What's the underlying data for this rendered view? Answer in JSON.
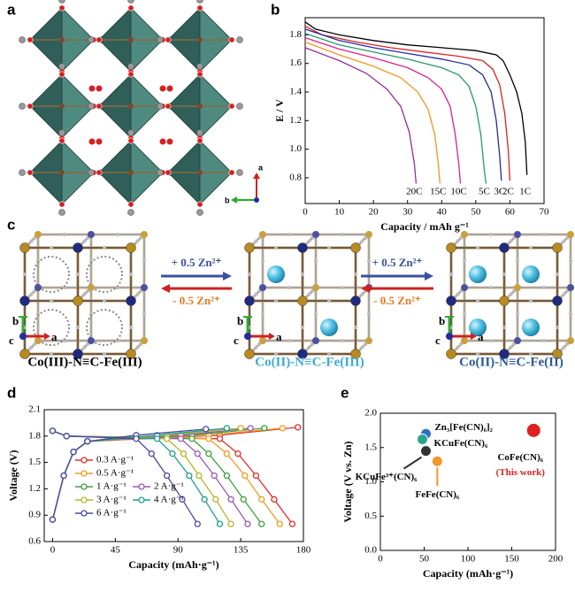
{
  "panel_labels": [
    "a",
    "b",
    "c",
    "d",
    "e"
  ],
  "panel_a": {
    "axis_labels": [
      "a",
      "b"
    ]
  },
  "panel_c": {
    "structures": [
      {
        "label": "Co(III)-N≡C-Fe(III)",
        "color": "#000000",
        "axes": [
          "b",
          "c",
          "a"
        ]
      },
      {
        "label": "Co(II)-N≡C-Fe(III)",
        "color": "#3fa9d4",
        "axes": [
          "b",
          "c",
          "a"
        ]
      },
      {
        "label": "Co(II)-N≡C-Fe(II)",
        "color": "#2a5a9a",
        "axes": [
          "b",
          "c",
          "a"
        ]
      }
    ],
    "arrows": [
      {
        "forward": "+ 0.5 Zn²⁺",
        "backward": "- 0.5 Zn²⁺"
      },
      {
        "forward": "+ 0.5 Zn²⁺",
        "backward": "- 0.5 Zn²⁺"
      }
    ]
  },
  "chart_data": [
    {
      "type": "line",
      "xlabel": "Capacity  /  mAh g⁻¹",
      "ylabel": "E  /  V",
      "xlim": [
        0,
        70
      ],
      "xticks": [
        0,
        10,
        20,
        30,
        40,
        50,
        60,
        70
      ],
      "ylim": [
        0.62,
        1.92
      ],
      "yticks": [
        0.8,
        {
          "value": 1,
          "label": "1.0"
        },
        1.2,
        1.4,
        1.6,
        1.8
      ],
      "series": [
        {
          "name": "1C",
          "color": "#000000",
          "x": [
            0,
            3,
            10,
            20,
            30,
            40,
            50,
            56,
            58,
            60,
            62,
            63.5,
            64.5,
            65
          ],
          "values": [
            1.89,
            1.84,
            1.8,
            1.76,
            1.73,
            1.71,
            1.69,
            1.66,
            1.62,
            1.52,
            1.4,
            1.25,
            1.05,
            0.82
          ]
        },
        {
          "name": "2C",
          "color": "#e02020",
          "x": [
            0,
            5,
            15,
            25,
            35,
            45,
            52,
            55,
            57,
            58.5,
            59.5,
            60
          ],
          "values": [
            1.86,
            1.8,
            1.75,
            1.71,
            1.68,
            1.65,
            1.62,
            1.56,
            1.45,
            1.25,
            1.0,
            0.78
          ]
        },
        {
          "name": "3C",
          "color": "#1f2fa0",
          "x": [
            0,
            10,
            20,
            30,
            40,
            48,
            52,
            54.5,
            56,
            57,
            57.5
          ],
          "values": [
            1.84,
            1.76,
            1.71,
            1.67,
            1.63,
            1.59,
            1.52,
            1.4,
            1.2,
            0.95,
            0.78
          ]
        },
        {
          "name": "5C",
          "color": "#2a9a6a",
          "x": [
            0,
            10,
            20,
            30,
            40,
            45,
            48,
            50,
            51.5,
            52.5,
            53
          ],
          "values": [
            1.81,
            1.73,
            1.68,
            1.63,
            1.57,
            1.52,
            1.44,
            1.3,
            1.1,
            0.85,
            0.76
          ]
        },
        {
          "name": "10C",
          "color": "#e0208a",
          "x": [
            0,
            10,
            20,
            30,
            36,
            40,
            42.5,
            44,
            45,
            45.5
          ],
          "values": [
            1.78,
            1.7,
            1.64,
            1.57,
            1.5,
            1.42,
            1.3,
            1.1,
            0.9,
            0.76
          ]
        },
        {
          "name": "15C",
          "color": "#f0961e",
          "x": [
            0,
            10,
            20,
            28,
            33,
            36,
            38,
            39,
            39.5
          ],
          "values": [
            1.75,
            1.66,
            1.58,
            1.5,
            1.4,
            1.28,
            1.1,
            0.9,
            0.76
          ]
        },
        {
          "name": "20C",
          "color": "#9a2a9a",
          "x": [
            0,
            10,
            18,
            24,
            28,
            30.5,
            32,
            32.5
          ],
          "values": [
            1.71,
            1.62,
            1.53,
            1.42,
            1.3,
            1.12,
            0.9,
            0.76
          ]
        }
      ]
    },
    {
      "type": "line",
      "markers": true,
      "xlabel": "Capacity (mAh·g⁻¹)",
      "ylabel": "Voltage (V)",
      "xlim": [
        -6,
        180
      ],
      "xticks": [
        0,
        45,
        90,
        135,
        180
      ],
      "ylim": [
        0.6,
        2.1
      ],
      "yticks": [
        0.6,
        0.9,
        1.2,
        1.5,
        1.8,
        2.1
      ],
      "series": [
        {
          "name": "0.3 A·g⁻¹",
          "color": "#e0302a",
          "x": [
            0,
            8,
            15,
            25,
            120,
            176,
            null,
            0,
            10,
            120,
            133,
            146,
            159,
            172
          ],
          "values": [
            0.85,
            1.35,
            1.62,
            1.74,
            1.81,
            1.9,
            null,
            1.86,
            1.8,
            1.77,
            1.6,
            1.35,
            1.08,
            0.8
          ]
        },
        {
          "name": "0.5 A·g⁻¹",
          "color": "#f39a1f",
          "x": [
            0,
            8,
            15,
            25,
            112,
            165,
            null,
            0,
            10,
            112,
            125,
            138,
            150,
            163
          ],
          "values": [
            0.85,
            1.35,
            1.62,
            1.74,
            1.81,
            1.89,
            null,
            1.86,
            1.8,
            1.77,
            1.6,
            1.35,
            1.08,
            0.8
          ]
        },
        {
          "name": "1 A·g⁻¹",
          "color": "#3ca23c",
          "x": [
            0,
            8,
            15,
            25,
            100,
            152,
            null,
            0,
            10,
            100,
            112,
            125,
            137,
            150
          ],
          "values": [
            0.85,
            1.35,
            1.62,
            1.74,
            1.81,
            1.89,
            null,
            1.86,
            1.8,
            1.77,
            1.6,
            1.35,
            1.08,
            0.8
          ]
        },
        {
          "name": "2 A·g⁻¹",
          "color": "#9b59b6",
          "x": [
            0,
            8,
            15,
            25,
            92,
            142,
            null,
            0,
            10,
            92,
            104,
            116,
            128,
            140
          ],
          "values": [
            0.85,
            1.35,
            1.62,
            1.74,
            1.81,
            1.89,
            null,
            1.86,
            1.8,
            1.77,
            1.6,
            1.35,
            1.08,
            0.8
          ]
        },
        {
          "name": "3 A·g⁻¹",
          "color": "#b5b52a",
          "x": [
            0,
            8,
            15,
            25,
            82,
            135,
            null,
            0,
            10,
            82,
            94,
            105,
            117,
            128
          ],
          "values": [
            0.85,
            1.35,
            1.62,
            1.74,
            1.81,
            1.89,
            null,
            1.86,
            1.8,
            1.77,
            1.6,
            1.35,
            1.08,
            0.8
          ]
        },
        {
          "name": "4 A·g⁻¹",
          "color": "#1f9e8f",
          "x": [
            0,
            8,
            15,
            25,
            75,
            125,
            null,
            0,
            10,
            75,
            86,
            98,
            109,
            120
          ],
          "values": [
            0.85,
            1.35,
            1.62,
            1.74,
            1.81,
            1.89,
            null,
            1.86,
            1.8,
            1.77,
            1.6,
            1.35,
            1.08,
            0.8
          ]
        },
        {
          "name": "6 A·g⁻¹",
          "color": "#4a4aa0",
          "x": [
            0,
            8,
            15,
            25,
            60,
            110,
            null,
            0,
            10,
            60,
            71,
            82,
            93,
            104
          ],
          "values": [
            0.85,
            1.35,
            1.62,
            1.74,
            1.81,
            1.88,
            null,
            1.86,
            1.8,
            1.77,
            1.6,
            1.35,
            1.08,
            0.8
          ]
        }
      ]
    },
    {
      "type": "scatter",
      "xlabel": "Capacity (mAh·g⁻¹)",
      "ylabel": "Voltage (V vs. Zn)",
      "xlim": [
        0,
        200
      ],
      "xticks": [
        0,
        50,
        100,
        150,
        200
      ],
      "ylim": [
        0,
        2
      ],
      "yticks": [
        {
          "value": 0,
          "label": "0.0"
        },
        0.5,
        {
          "value": 1,
          "label": "1.0"
        },
        1.5,
        {
          "value": 2,
          "label": "2.0"
        }
      ],
      "series": [
        {
          "name": "Zn₃[Fe(CN)₆]₂",
          "color": "#2f6fc0",
          "x": [
            52
          ],
          "values": [
            1.7
          ]
        },
        {
          "name": "KCuFe(CN)₆",
          "color": "#2aa58a",
          "x": [
            48
          ],
          "values": [
            1.62
          ]
        },
        {
          "name": "KCuFe³⁺(CN)₆",
          "color": "#333333",
          "x": [
            52
          ],
          "values": [
            1.45
          ]
        },
        {
          "name": "FeFe(CN)₆",
          "color": "#f0982a",
          "x": [
            65
          ],
          "values": [
            1.3
          ]
        },
        {
          "name": "CoFe(CN)₆",
          "color": "#e02020",
          "x": [
            175
          ],
          "values": [
            1.75
          ]
        }
      ],
      "annotations": [
        "(This work)"
      ]
    }
  ]
}
